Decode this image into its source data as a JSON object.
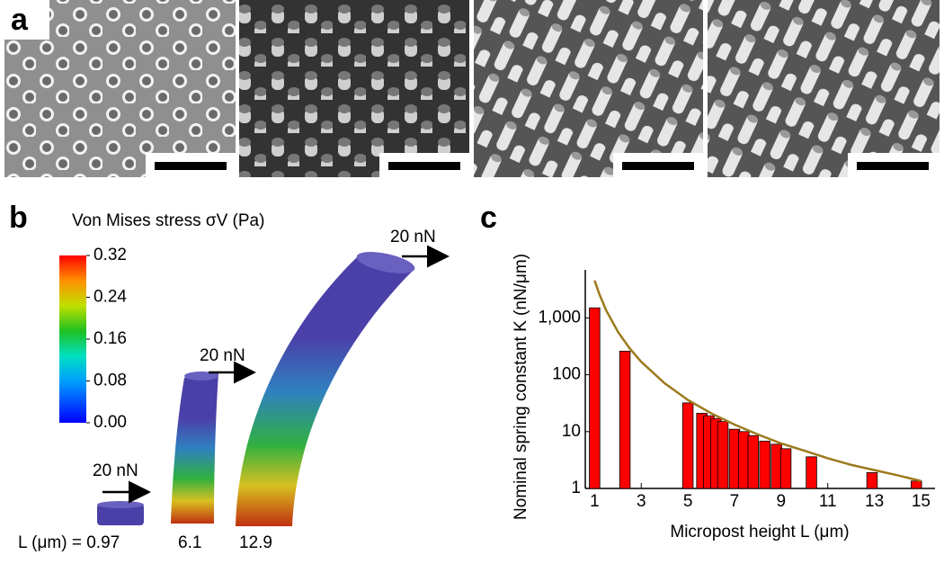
{
  "panel_labels": [
    "a",
    "b",
    "c"
  ],
  "stress_panel": {
    "colorbar": {
      "title": "Von Mises stress σV (Pa)",
      "lim": [
        0,
        0.32
      ],
      "ticks": [
        0.32,
        0.24,
        0.16,
        0.08,
        {
          "value": 0,
          "label": "0.00"
        }
      ]
    },
    "force_labels": [
      "20 nN",
      "20 nN",
      "20 nN"
    ],
    "length_labels": [
      "L (μm) = 0.97",
      "6.1",
      "12.9"
    ]
  },
  "chart_data": {
    "type": "bar",
    "xlabel": "Micropost height L (μm)",
    "ylabel": "Nominal spring constant K (nN/μm)",
    "xlim": [
      0.6,
      15.6
    ],
    "ylim": [
      1,
      7000
    ],
    "log_y": true,
    "xticks": [
      1,
      3,
      5,
      7,
      9,
      11,
      13,
      15
    ],
    "yticks": [
      1,
      10,
      100,
      {
        "value": 1000,
        "label": "1,000"
      }
    ],
    "x": [
      1.0,
      2.3,
      5.0,
      5.6,
      5.9,
      6.2,
      6.5,
      7.0,
      7.4,
      7.8,
      8.3,
      8.8,
      9.2,
      10.3,
      12.9,
      14.8
    ],
    "values": [
      1500,
      260,
      32,
      21,
      19,
      17,
      15,
      11,
      10,
      8.5,
      6.8,
      6,
      5,
      3.6,
      1.9,
      1.35
    ],
    "color": "#ff0000",
    "line": {
      "type": "line",
      "color": "#9c7a1c",
      "x": [
        1.0,
        1.2,
        1.5,
        2,
        2.5,
        3,
        4,
        5,
        6,
        7,
        8,
        9,
        10,
        11,
        12,
        13,
        14,
        15
      ],
      "values": [
        4556,
        2637,
        1350,
        570,
        292,
        169,
        71,
        36,
        21,
        13.3,
        8.9,
        6.2,
        4.6,
        3.4,
        2.6,
        2.1,
        1.7,
        1.35
      ]
    }
  }
}
